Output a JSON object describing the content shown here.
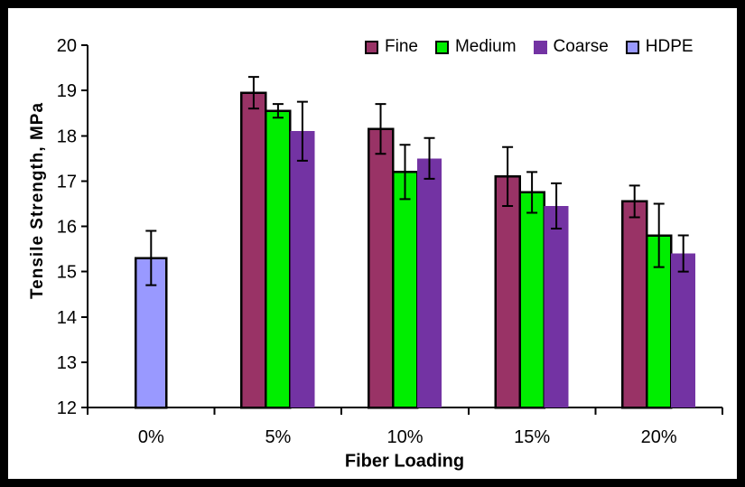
{
  "chart_data": {
    "type": "bar",
    "xlabel": "Fiber Loading",
    "ylabel": "Tensile Strength, MPa",
    "ylim": [
      12,
      20
    ],
    "ytick_step": 1,
    "grid": false,
    "legend_position": "top-inside",
    "categories": [
      "0%",
      "5%",
      "10%",
      "15%",
      "20%"
    ],
    "series": [
      {
        "name": "Fine",
        "color": "#993366",
        "outline": "#000000",
        "values": [
          null,
          18.95,
          18.15,
          17.1,
          16.55
        ],
        "errors": [
          null,
          0.35,
          0.55,
          0.65,
          0.35
        ]
      },
      {
        "name": "Medium",
        "color": "#00EE00",
        "outline": "#000000",
        "values": [
          null,
          18.55,
          17.2,
          16.75,
          15.8
        ],
        "errors": [
          null,
          0.15,
          0.6,
          0.45,
          0.7
        ]
      },
      {
        "name": "Coarse",
        "color": "#7333A3",
        "outline": null,
        "values": [
          null,
          18.1,
          17.5,
          16.45,
          15.4
        ],
        "errors": [
          null,
          0.65,
          0.45,
          0.5,
          0.4
        ]
      },
      {
        "name": "HDPE",
        "color": "#9999FF",
        "outline": "#000000",
        "values": [
          15.3,
          null,
          null,
          null,
          null
        ],
        "errors": [
          0.6,
          null,
          null,
          null,
          null
        ]
      }
    ],
    "axis_color": "#000000",
    "error_bar_color": "#000000"
  }
}
